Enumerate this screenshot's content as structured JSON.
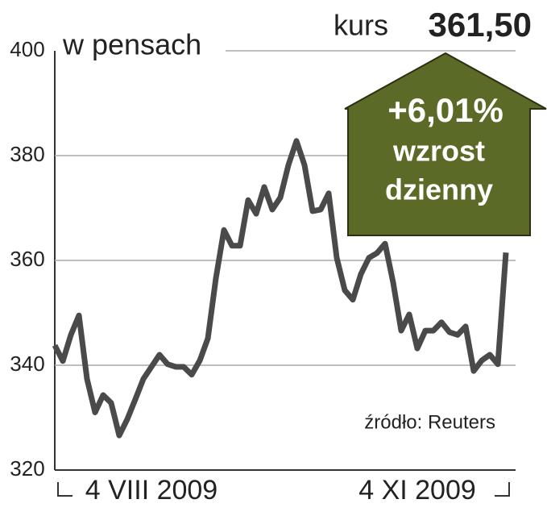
{
  "chart_data": {
    "type": "line",
    "y_label": "w pensach",
    "price_label": "kurs",
    "price": "361,50",
    "change": "+6,01%",
    "change_text": [
      "wzrost",
      "dzienny"
    ],
    "source": "źródło: Reuters",
    "categories": [
      null,
      null,
      null,
      null,
      null,
      null,
      null,
      null,
      null,
      null,
      null,
      null,
      "4 VIII 2009",
      null,
      null,
      null,
      null,
      null,
      null,
      null,
      null,
      null,
      null,
      null,
      null,
      null,
      null,
      null,
      null,
      null,
      null,
      null,
      null,
      null,
      null,
      null,
      null,
      null,
      null,
      null,
      null,
      null,
      null,
      null,
      null,
      "4 XI 2009",
      null,
      null,
      null,
      null,
      null,
      null,
      null,
      null,
      null,
      null,
      null
    ],
    "series": [
      {
        "color": "#4a4a4a",
        "values": [
          343.8,
          340.8,
          345.8,
          349.5,
          337.4,
          331,
          334.3,
          332.8,
          326.6,
          329.7,
          333.5,
          337.4,
          339.7,
          342,
          340.2,
          339.7,
          339.7,
          338.2,
          340.9,
          345.1,
          356.6,
          365.8,
          362.8,
          362.8,
          371.5,
          368.9,
          374,
          369.7,
          372,
          378.2,
          382.8,
          378.2,
          369.4,
          369.7,
          372.8,
          360.5,
          354.3,
          352.5,
          357.4,
          360.5,
          361.4,
          363.2,
          355.8,
          346.6,
          349.7,
          343.2,
          346.6,
          346.6,
          348.2,
          346.3,
          345.8,
          347.4,
          338.9,
          340.9,
          342,
          340.2,
          361.5
        ]
      }
    ],
    "ylim": [
      320,
      400
    ],
    "yticks": [
      320,
      340,
      360,
      380,
      400
    ],
    "grid": true,
    "arrow_color": "#5b6a26"
  }
}
